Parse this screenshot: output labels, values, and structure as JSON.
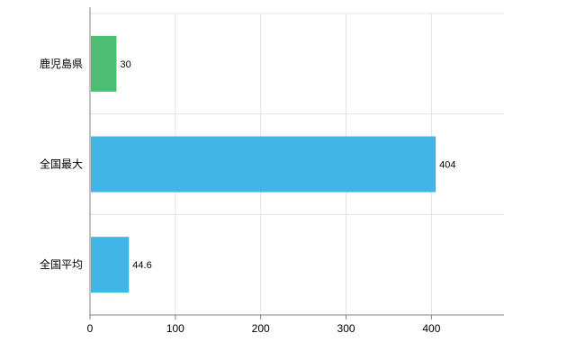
{
  "chart_data": {
    "type": "bar",
    "orientation": "horizontal",
    "title": "",
    "xlabel": "",
    "ylabel": "",
    "categories": [
      "鹿児島県",
      "全国最大",
      "全国平均"
    ],
    "values": [
      30,
      404,
      44.6
    ],
    "value_labels": [
      "30",
      "404",
      "44.6"
    ],
    "bar_colors": [
      "#4dbd74",
      "#41b6e6",
      "#41b6e6"
    ],
    "x_ticks": [
      "0",
      "100",
      "200",
      "300",
      "400"
    ],
    "x_tick_values": [
      0,
      100,
      200,
      300,
      400
    ],
    "xlim": [
      0,
      485
    ],
    "grid": true,
    "legend": false
  },
  "colors": {
    "background": "#ffffff",
    "grid": "#e3e3e3",
    "axis": "#808080",
    "text": "#000000",
    "green_bar": "#4dbd74",
    "blue_bar": "#41b6e6"
  }
}
